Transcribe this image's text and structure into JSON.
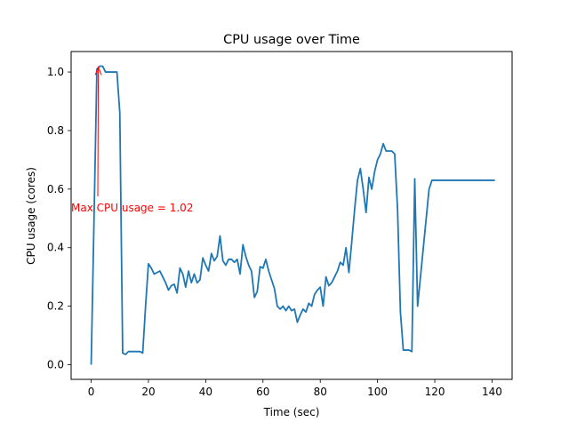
{
  "chart_data": {
    "type": "line",
    "title": "CPU usage over Time",
    "xlabel": "Time (sec)",
    "ylabel": "CPU usage (cores)",
    "xlim": [
      -7,
      147
    ],
    "ylim": [
      -0.05,
      1.07
    ],
    "xticks": [
      0,
      20,
      40,
      60,
      80,
      100,
      120,
      140
    ],
    "yticks": [
      0.0,
      0.2,
      0.4,
      0.6,
      0.8,
      1.0
    ],
    "ytick_labels": [
      "0.0",
      "0.2",
      "0.4",
      "0.6",
      "0.8",
      "1.0"
    ],
    "grid": false,
    "series": [
      {
        "color": "#1f77b4",
        "x": [
          0,
          1,
          2,
          3,
          4,
          5,
          6,
          7,
          8,
          9,
          10,
          11,
          12,
          13,
          14,
          15,
          16,
          17,
          18,
          19,
          20,
          21,
          22,
          23,
          24,
          25,
          26,
          27,
          28,
          29,
          30,
          31,
          32,
          33,
          34,
          35,
          36,
          37,
          38,
          39,
          40,
          41,
          42,
          43,
          44,
          45,
          46,
          47,
          48,
          49,
          50,
          51,
          52,
          53,
          54,
          55,
          56,
          57,
          58,
          59,
          60,
          61,
          62,
          63,
          64,
          65,
          66,
          67,
          68,
          69,
          70,
          71,
          72,
          73,
          74,
          75,
          76,
          77,
          78,
          79,
          80,
          81,
          82,
          83,
          84,
          85,
          86,
          87,
          88,
          89,
          90,
          91,
          92,
          93,
          94,
          95,
          96,
          97,
          98,
          99,
          100,
          101,
          102,
          103,
          104,
          105,
          106,
          107,
          108,
          109,
          110,
          111,
          112,
          113,
          114,
          115,
          116,
          117,
          118,
          119,
          120,
          121,
          122,
          123,
          124,
          125,
          126,
          127,
          128,
          129,
          130,
          131,
          132,
          133,
          134,
          135,
          136,
          137,
          138,
          139,
          140,
          141
        ],
        "y": [
          0.0,
          0.5,
          1.01,
          1.02,
          1.02,
          1.0,
          1.0,
          1.0,
          1.0,
          1.0,
          0.86,
          0.04,
          0.035,
          0.045,
          0.045,
          0.045,
          0.045,
          0.045,
          0.04,
          0.2,
          0.345,
          0.33,
          0.31,
          0.315,
          0.32,
          0.3,
          0.28,
          0.255,
          0.27,
          0.275,
          0.245,
          0.33,
          0.31,
          0.265,
          0.32,
          0.28,
          0.31,
          0.28,
          0.29,
          0.365,
          0.34,
          0.32,
          0.38,
          0.355,
          0.37,
          0.44,
          0.355,
          0.34,
          0.36,
          0.36,
          0.35,
          0.36,
          0.31,
          0.41,
          0.37,
          0.34,
          0.32,
          0.23,
          0.25,
          0.335,
          0.33,
          0.36,
          0.32,
          0.29,
          0.26,
          0.2,
          0.19,
          0.2,
          0.185,
          0.2,
          0.185,
          0.19,
          0.145,
          0.17,
          0.19,
          0.18,
          0.21,
          0.2,
          0.24,
          0.255,
          0.265,
          0.2,
          0.3,
          0.27,
          0.28,
          0.3,
          0.32,
          0.35,
          0.34,
          0.4,
          0.315,
          0.42,
          0.53,
          0.63,
          0.67,
          0.6,
          0.52,
          0.64,
          0.6,
          0.66,
          0.7,
          0.72,
          0.755,
          0.73,
          0.73,
          0.73,
          0.72,
          0.53,
          0.18,
          0.05,
          0.05,
          0.05,
          0.045,
          0.635,
          0.2,
          0.3,
          0.4,
          0.5,
          0.6,
          0.63,
          0.63,
          0.63,
          0.63,
          0.63,
          0.63,
          0.63,
          0.63,
          0.63,
          0.63,
          0.63,
          0.63,
          0.63,
          0.63,
          0.63,
          0.63,
          0.63,
          0.63,
          0.63,
          0.63,
          0.63,
          0.63,
          0.63
        ]
      }
    ],
    "annotation": {
      "text": "Max CPU usage = 1.02",
      "xy": [
        2.5,
        1.02
      ],
      "xytext": [
        -7,
        0.53
      ],
      "color": "#ff0000"
    }
  }
}
